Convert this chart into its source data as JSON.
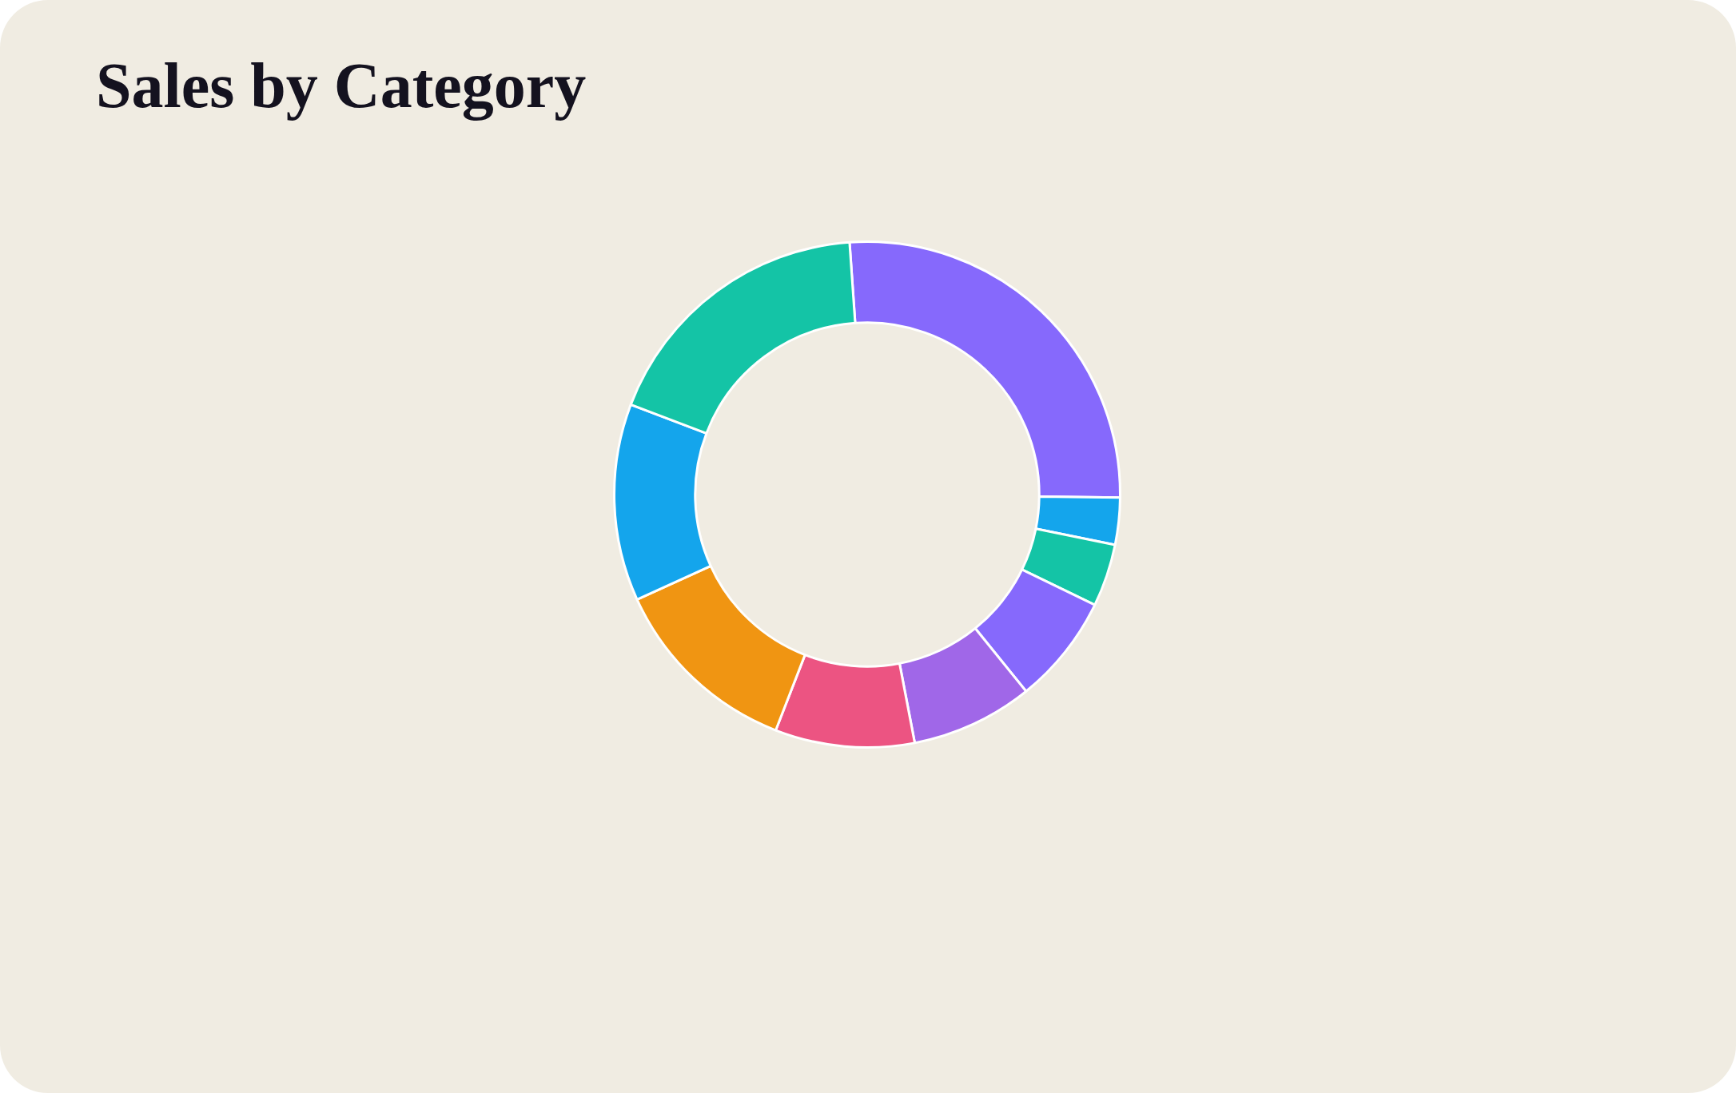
{
  "chart_data": {
    "type": "donut",
    "title": "Sales by Category",
    "categories": [
      null,
      null,
      null,
      null,
      null,
      null,
      null,
      null,
      null
    ],
    "values": [
      26.3,
      3,
      4,
      7,
      7.8,
      8.9,
      12.3,
      12.6,
      18.1
    ],
    "colors": [
      "#8669fc",
      "#14a5ec",
      "#14c4a6",
      "#8669fc",
      "#a067e8",
      "#ec5482",
      "#f09512",
      "#14a5ec",
      "#14c4a6"
    ],
    "legend": false
  }
}
